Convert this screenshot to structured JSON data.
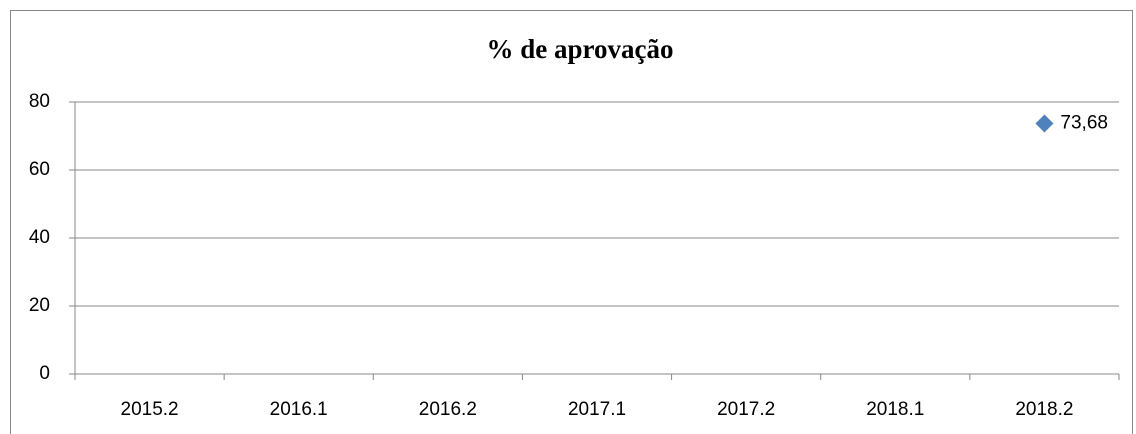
{
  "chart_data": {
    "type": "line",
    "title": "% de aprovação",
    "categories": [
      "2015.2",
      "2016.1",
      "2016.2",
      "2017.1",
      "2017.2",
      "2018.1",
      "2018.2"
    ],
    "values": [
      null,
      null,
      null,
      null,
      null,
      null,
      73.68
    ],
    "value_labels": [
      null,
      null,
      null,
      null,
      null,
      null,
      "73,68"
    ],
    "color": "#4f81bd",
    "marker": "diamond",
    "ylim": [
      0,
      80
    ],
    "yticks": [
      0,
      20,
      40,
      60,
      80
    ],
    "grid": true
  }
}
